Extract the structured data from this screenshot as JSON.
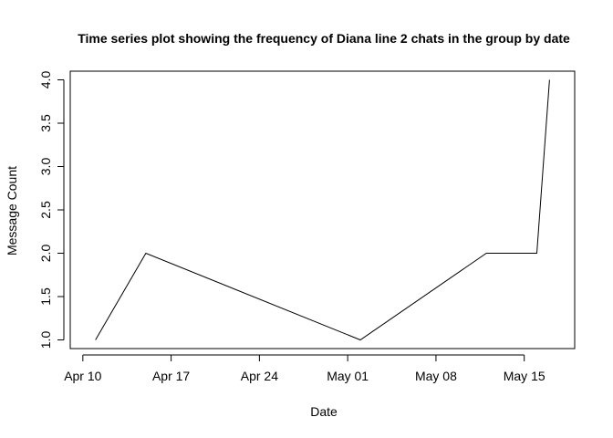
{
  "chart_data": {
    "type": "line",
    "title": "Time series plot showing the frequency of Diana line 2 chats in the group by date",
    "xlabel": "Date",
    "ylabel": "Message Count",
    "x_tick_labels": [
      "Apr 10",
      "Apr 17",
      "Apr 24",
      "May 01",
      "May 08",
      "May 15"
    ],
    "x_tick_dates": [
      "2023-04-10",
      "2023-04-17",
      "2023-04-24",
      "2023-05-01",
      "2023-05-08",
      "2023-05-15"
    ],
    "y_tick_labels": [
      "1.0",
      "1.5",
      "2.0",
      "2.5",
      "3.0",
      "3.5",
      "4.0"
    ],
    "y_tick_values": [
      1.0,
      1.5,
      2.0,
      2.5,
      3.0,
      3.5,
      4.0
    ],
    "xlim": [
      "2023-04-09",
      "2023-05-19"
    ],
    "ylim": [
      0.9,
      4.1
    ],
    "grid": false,
    "series": [
      {
        "x": [
          "2023-04-11",
          "2023-04-15",
          "2023-05-02",
          "2023-05-12",
          "2023-05-16",
          "2023-05-17"
        ],
        "y": [
          1,
          2,
          1,
          2,
          2,
          4
        ]
      }
    ],
    "line_color": "#000000"
  }
}
